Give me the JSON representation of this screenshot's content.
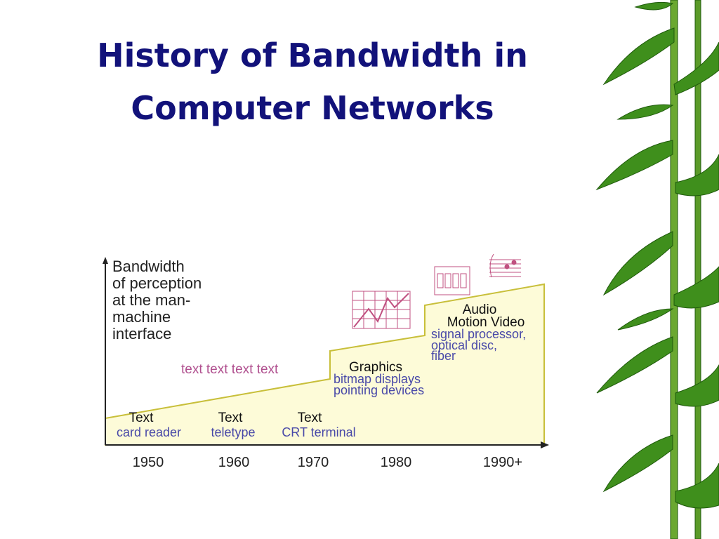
{
  "title": [
    "History of Bandwidth in",
    "Computer Networks"
  ],
  "diagram": {
    "y_axis_label": [
      "Bandwidth",
      "of perception",
      "at the man-",
      "machine",
      "interface"
    ],
    "x_labels": [
      "1950",
      "1960",
      "1970",
      "1980",
      "1990+"
    ],
    "note": "text text text text",
    "eras": [
      {
        "heading": [
          "Text"
        ],
        "detail": [
          "card reader"
        ]
      },
      {
        "heading": [
          "Text"
        ],
        "detail": [
          "teletype"
        ]
      },
      {
        "heading": [
          "Text"
        ],
        "detail": [
          "CRT terminal"
        ]
      },
      {
        "heading": [
          "Graphics"
        ],
        "detail": [
          "bitmap displays",
          "pointing devices"
        ]
      },
      {
        "heading": [
          "Audio",
          "Motion Video"
        ],
        "detail": [
          "signal processor,",
          "optical disc,",
          "fiber"
        ]
      }
    ]
  }
}
